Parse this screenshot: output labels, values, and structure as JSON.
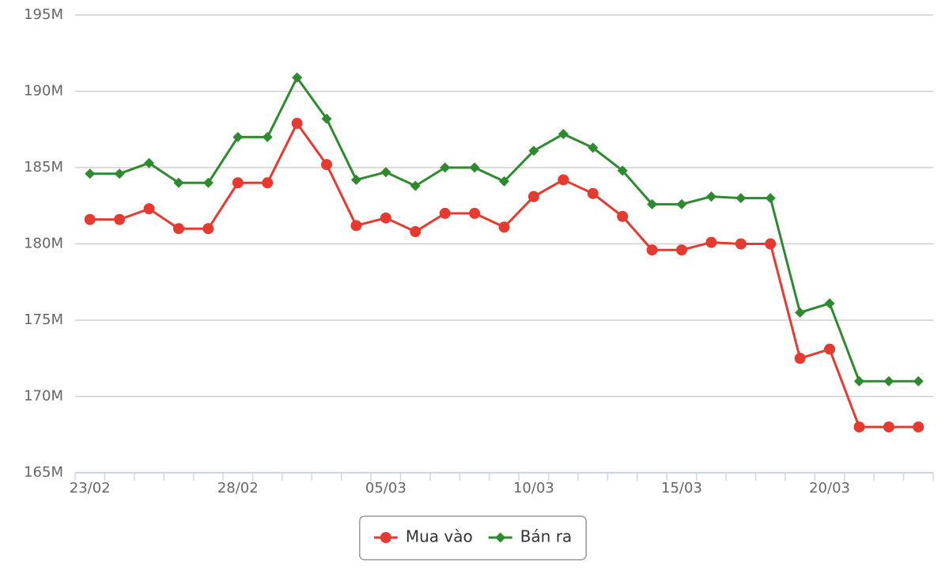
{
  "chart_data": {
    "type": "line",
    "categories": [
      "23/02",
      null,
      null,
      null,
      null,
      "28/02",
      null,
      null,
      null,
      null,
      "05/03",
      null,
      null,
      null,
      null,
      "10/03",
      null,
      null,
      null,
      null,
      "15/03",
      null,
      null,
      null,
      null,
      "20/03",
      null,
      null,
      null
    ],
    "series": [
      {
        "name": "Mua vào",
        "color": "#e53a2f",
        "marker": "circle",
        "values": [
          181.6,
          181.6,
          182.3,
          181.0,
          181.0,
          184.0,
          184.0,
          187.9,
          185.2,
          181.2,
          181.7,
          180.8,
          182.0,
          182.0,
          181.1,
          183.1,
          184.2,
          183.3,
          181.8,
          179.6,
          179.6,
          180.1,
          180.0,
          180.0,
          172.5,
          173.1,
          168.0,
          168.0,
          168.0
        ]
      },
      {
        "name": "Bán ra",
        "color": "#2e8a2e",
        "marker": "diamond",
        "values": [
          184.6,
          184.6,
          185.3,
          184.0,
          184.0,
          187.0,
          187.0,
          190.9,
          188.2,
          184.2,
          184.7,
          183.8,
          185.0,
          185.0,
          184.1,
          186.1,
          187.2,
          186.3,
          184.8,
          182.6,
          182.6,
          183.1,
          183.0,
          183.0,
          175.5,
          176.1,
          171.0,
          171.0,
          171.0
        ]
      }
    ],
    "ylim": [
      165,
      195
    ],
    "yticks": [
      {
        "value": 165,
        "label": "165M"
      },
      {
        "value": 170,
        "label": "170M"
      },
      {
        "value": 175,
        "label": "175M"
      },
      {
        "value": 180,
        "label": "180M"
      },
      {
        "value": 185,
        "label": "185M"
      },
      {
        "value": 190,
        "label": "190M"
      },
      {
        "value": 195,
        "label": "195M"
      }
    ],
    "grid": true,
    "legend": "bottom"
  }
}
